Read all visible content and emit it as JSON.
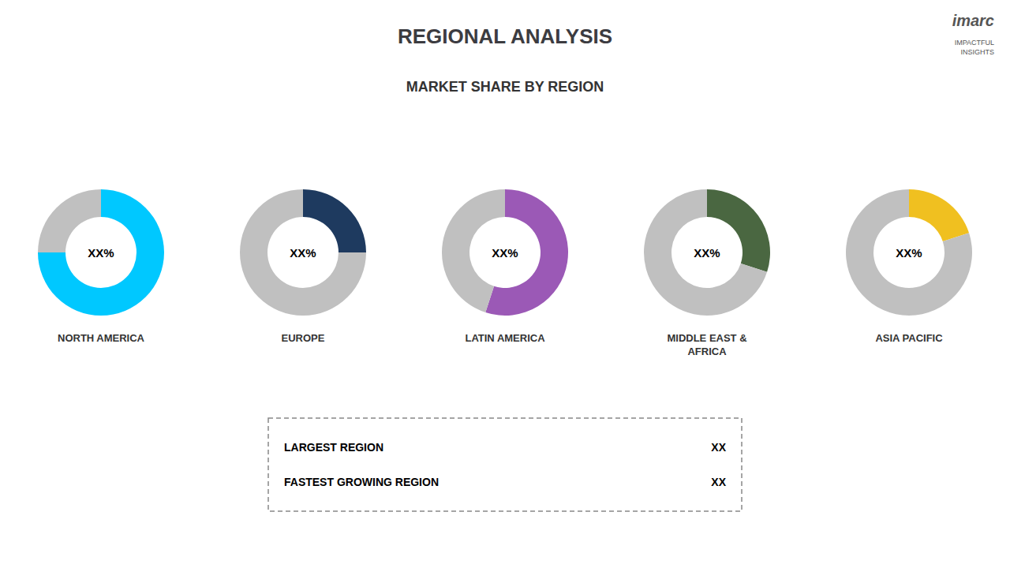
{
  "chart_data": {
    "type": "pie",
    "title": "REGIONAL ANALYSIS",
    "subtitle": "MARKET SHARE BY REGION",
    "series": [
      {
        "name": "NORTH AMERICA",
        "values": [
          75,
          25
        ],
        "colors": [
          "#00c8ff",
          "#c0c0c0"
        ],
        "annotation": "XX%"
      },
      {
        "name": "EUROPE",
        "values": [
          25,
          75
        ],
        "colors": [
          "#1e3a5f",
          "#c0c0c0"
        ],
        "annotation": "XX%"
      },
      {
        "name": "LATIN AMERICA",
        "values": [
          55,
          45
        ],
        "colors": [
          "#9b59b6",
          "#c0c0c0"
        ],
        "annotation": "XX%"
      },
      {
        "name": "MIDDLE EAST &\nAFRICA",
        "values": [
          30,
          70
        ],
        "colors": [
          "#4a6741",
          "#c0c0c0"
        ],
        "annotation": "XX%"
      },
      {
        "name": "ASIA PACIFIC",
        "values": [
          20,
          80
        ],
        "colors": [
          "#f0c020",
          "#c0c0c0"
        ],
        "annotation": "XX%"
      }
    ],
    "annotations": [
      {
        "text": "LARGEST REGION",
        "value_text": "XX"
      },
      {
        "text": "FASTEST GROWING REGION",
        "value_text": "XX"
      },
      {
        "text": "imarc"
      },
      {
        "text": "IMPACTFUL\nINSIGHTS"
      }
    ]
  }
}
